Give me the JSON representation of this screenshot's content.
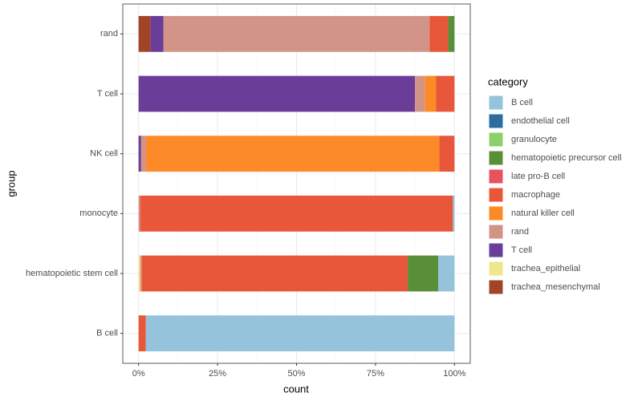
{
  "chart_data": {
    "type": "stacked_bar",
    "orientation": "horizontal",
    "x_label": "count",
    "y_label": "group",
    "legend_title": "category",
    "legend_position": "right",
    "categories": [
      "B cell",
      "hematopoietic stem cell",
      "monocyte",
      "NK cell",
      "T cell",
      "rand"
    ],
    "xlim": [
      -5,
      105
    ],
    "xticks": [
      {
        "value": 0,
        "label": "0%"
      },
      {
        "value": 25,
        "label": "25%"
      },
      {
        "value": 50,
        "label": "50%"
      },
      {
        "value": 75,
        "label": "75%"
      },
      {
        "value": 100,
        "label": "100%"
      }
    ],
    "grid": true,
    "series": [
      {
        "name": "B cell",
        "color": "#96c3dc",
        "values": [
          97.7,
          5.1,
          0.5,
          0,
          0,
          0
        ]
      },
      {
        "name": "endothelial cell",
        "color": "#2b6da1",
        "values": [
          0,
          0,
          0,
          0,
          0,
          0
        ]
      },
      {
        "name": "granulocyte",
        "color": "#8fcf6a",
        "values": [
          0,
          0,
          0,
          0,
          0,
          0
        ]
      },
      {
        "name": "hematopoietic precursor cell",
        "color": "#5a8f3a",
        "values": [
          0,
          9.7,
          0,
          0,
          0,
          2.0
        ]
      },
      {
        "name": "late pro-B cell",
        "color": "#e8525b",
        "values": [
          0,
          0,
          0,
          0,
          0,
          0
        ]
      },
      {
        "name": "macrophage",
        "color": "#e8573a",
        "values": [
          2.3,
          84.2,
          99.0,
          4.8,
          5.8,
          5.9
        ]
      },
      {
        "name": "natural killer cell",
        "color": "#fc8a28",
        "values": [
          0,
          0,
          0,
          92.9,
          3.6,
          0
        ]
      },
      {
        "name": "rand",
        "color": "#d19486",
        "values": [
          0,
          0.5,
          0.5,
          1.5,
          3.1,
          84.2
        ]
      },
      {
        "name": "T cell",
        "color": "#6a3d98",
        "values": [
          0,
          0,
          0,
          0.8,
          87.5,
          4.1
        ]
      },
      {
        "name": "trachea_epithelial",
        "color": "#efe78a",
        "values": [
          0,
          0.5,
          0,
          0,
          0,
          0
        ]
      },
      {
        "name": "trachea_mesenchymal",
        "color": "#a04527",
        "values": [
          0,
          0,
          0,
          0,
          0,
          3.8
        ]
      }
    ]
  }
}
